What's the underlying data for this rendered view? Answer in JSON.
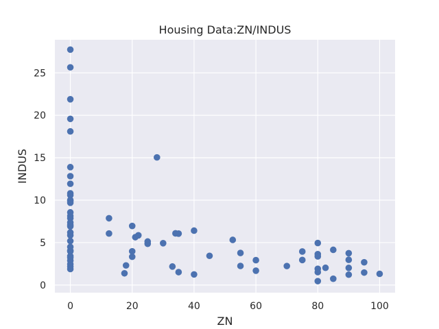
{
  "chart_data": {
    "type": "scatter",
    "title": "Housing Data:ZN/INDUS",
    "xlabel": "ZN",
    "ylabel": "INDUS",
    "xlim": [
      -5,
      105
    ],
    "ylim": [
      -0.9,
      28.9
    ],
    "xticks": [
      0,
      20,
      40,
      60,
      80,
      100
    ],
    "yticks": [
      0,
      5,
      10,
      15,
      20,
      25
    ],
    "grid": true,
    "colors": {
      "background": "#eaeaf2",
      "grid": "#ffffff",
      "point": "#4c72b0",
      "text": "#262626"
    },
    "series": [
      {
        "points": [
          [
            0,
            27.74
          ],
          [
            0,
            25.65
          ],
          [
            0,
            21.89
          ],
          [
            0,
            19.58
          ],
          [
            0,
            18.1
          ],
          [
            0,
            13.89
          ],
          [
            0,
            12.83
          ],
          [
            0,
            11.93
          ],
          [
            0,
            10.81
          ],
          [
            0,
            10.59
          ],
          [
            0,
            10.01
          ],
          [
            0,
            9.9
          ],
          [
            0,
            9.69
          ],
          [
            0,
            8.56
          ],
          [
            0,
            8.14
          ],
          [
            0,
            7.87
          ],
          [
            0,
            7.38
          ],
          [
            0,
            7.07
          ],
          [
            0,
            6.91
          ],
          [
            0,
            6.2
          ],
          [
            0,
            5.86
          ],
          [
            0,
            5.19
          ],
          [
            0,
            4.49
          ],
          [
            0,
            4.05
          ],
          [
            0,
            3.97
          ],
          [
            0,
            3.41
          ],
          [
            0,
            3.24
          ],
          [
            0,
            2.89
          ],
          [
            0,
            2.46
          ],
          [
            0,
            2.18
          ],
          [
            0,
            1.89
          ],
          [
            12.5,
            7.87
          ],
          [
            12.5,
            6.07
          ],
          [
            17.5,
            1.38
          ],
          [
            18,
            2.31
          ],
          [
            20,
            6.96
          ],
          [
            20,
            3.97
          ],
          [
            20,
            3.33
          ],
          [
            21,
            5.64
          ],
          [
            22,
            5.86
          ],
          [
            25,
            5.13
          ],
          [
            25,
            4.86
          ],
          [
            28,
            15.04
          ],
          [
            30,
            4.93
          ],
          [
            33,
            2.18
          ],
          [
            34,
            6.09
          ],
          [
            35,
            6.06
          ],
          [
            35,
            1.52
          ],
          [
            40,
            6.41
          ],
          [
            40,
            1.25
          ],
          [
            45,
            3.44
          ],
          [
            52.5,
            5.32
          ],
          [
            55,
            3.78
          ],
          [
            55,
            2.25
          ],
          [
            60,
            2.93
          ],
          [
            60,
            1.69
          ],
          [
            70,
            2.24
          ],
          [
            75,
            3.95
          ],
          [
            75,
            2.95
          ],
          [
            80,
            4.95
          ],
          [
            80,
            3.64
          ],
          [
            80,
            3.37
          ],
          [
            80,
            1.91
          ],
          [
            80,
            1.52
          ],
          [
            80,
            0.46
          ],
          [
            82.5,
            2.03
          ],
          [
            85,
            4.15
          ],
          [
            85,
            0.74
          ],
          [
            90,
            3.75
          ],
          [
            90,
            2.97
          ],
          [
            90,
            2.02
          ],
          [
            90,
            1.22
          ],
          [
            95,
            2.68
          ],
          [
            95,
            1.47
          ],
          [
            100,
            1.32
          ]
        ]
      }
    ]
  }
}
